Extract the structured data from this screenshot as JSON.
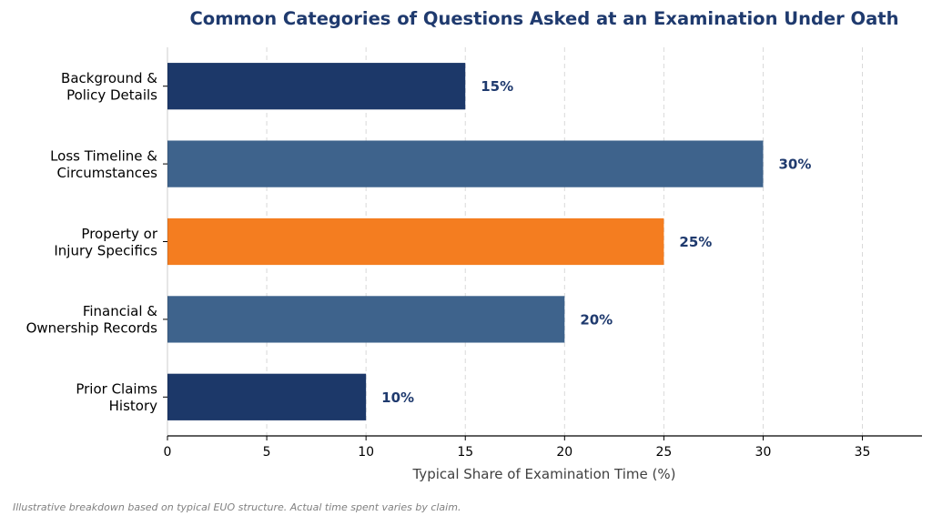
{
  "chart_data": {
    "type": "bar",
    "orientation": "horizontal",
    "title": "Common Categories of Questions Asked at an Examination Under Oath",
    "xlabel": "Typical Share of Examination Time (%)",
    "ylabel": "",
    "xlim": [
      0,
      38
    ],
    "xticks": [
      0,
      5,
      10,
      15,
      20,
      25,
      30,
      35
    ],
    "grid": "x-dashed",
    "categories": [
      [
        "Background &",
        "Policy Details"
      ],
      [
        "Loss Timeline &",
        "Circumstances"
      ],
      [
        "Property or",
        "Injury Specifics"
      ],
      [
        "Financial &",
        "Ownership Records"
      ],
      [
        "Prior Claims",
        "History"
      ]
    ],
    "values": [
      15,
      30,
      25,
      20,
      10
    ],
    "value_labels": [
      "15%",
      "30%",
      "25%",
      "20%",
      "10%"
    ],
    "bar_colors": [
      "#1c3869",
      "#3e638c",
      "#f47d20",
      "#3e638c",
      "#1c3869"
    ],
    "title_color": "#1f3a6e",
    "value_label_color": "#1f3a6e"
  },
  "footnote": "Illustrative breakdown based on typical EUO structure. Actual time spent varies by claim."
}
